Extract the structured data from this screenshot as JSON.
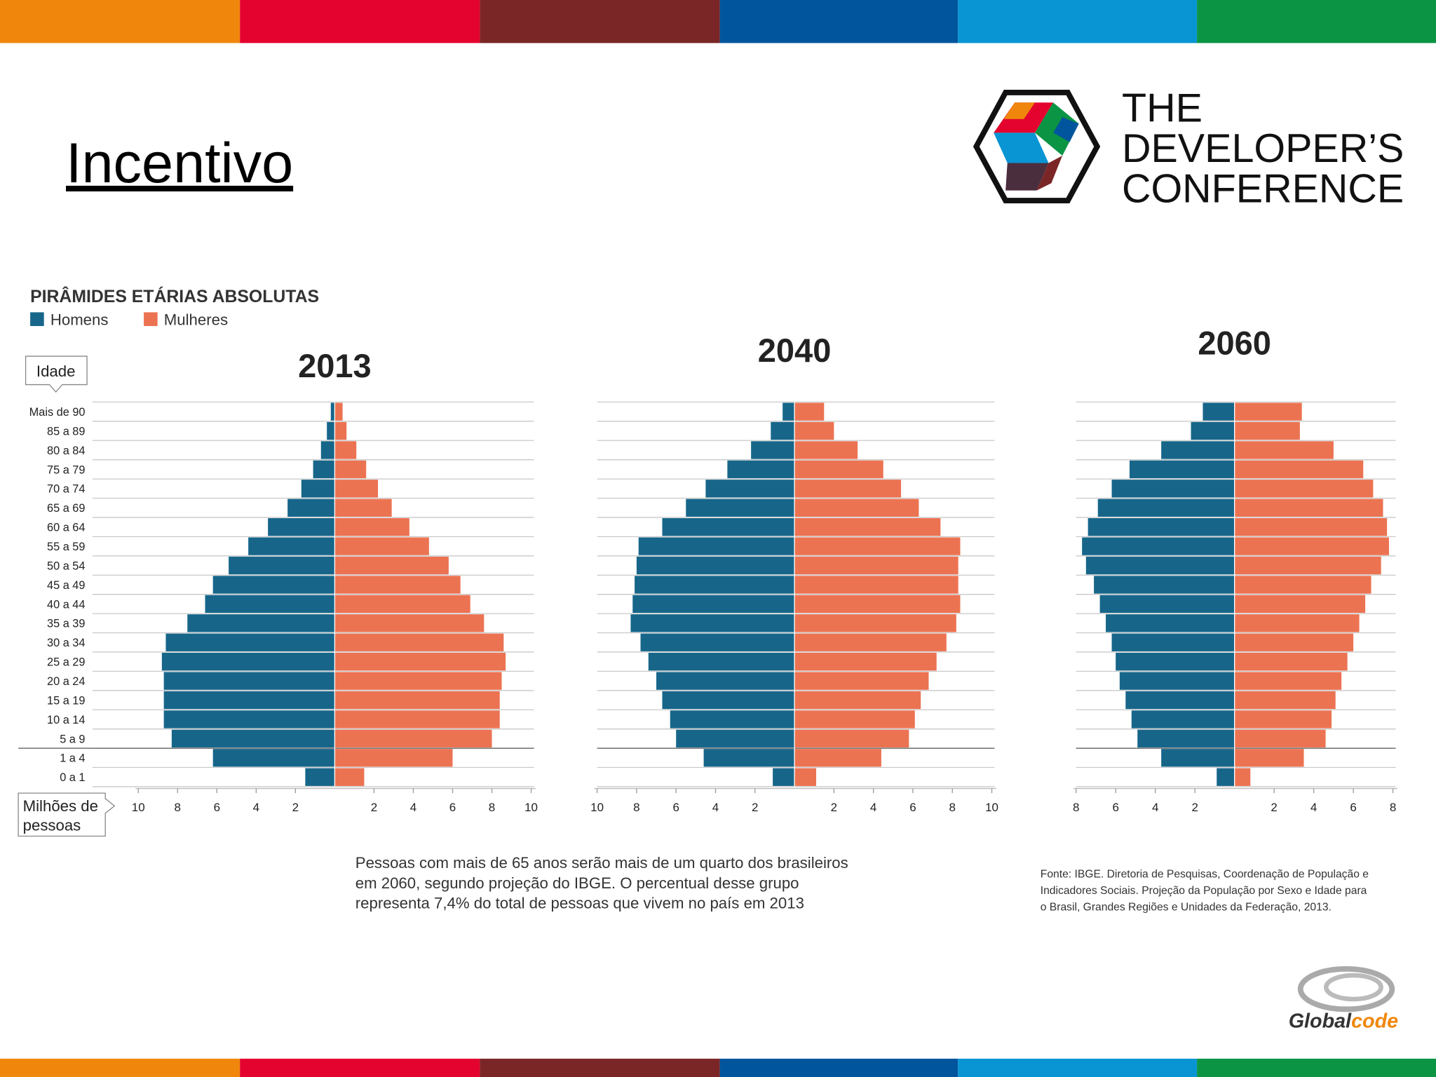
{
  "header": {
    "title": "Incentivo",
    "logo_lines": [
      "THE",
      "DEVELOPER’S",
      "CONFERENCE"
    ],
    "brand_parts": [
      "Global",
      "code"
    ]
  },
  "figure": {
    "caption": [
      "Pessoas com mais de 65 anos serão mais de um quarto dos brasileiros",
      "em 2060, segundo projeção do IBGE. O percentual desse grupo",
      "representa 7,4% do total de pessoas que vivem no país em 2013"
    ],
    "source": [
      "Fonte: IBGE. Diretoria de Pesquisas, Coordenação de População e",
      "Indicadores Sociais. Projeção da População por Sexo e Idade para",
      "o Brasil, Grandes Regiões e Unidades da Federação, 2013."
    ]
  },
  "chart_data": [
    {
      "type": "pyramid",
      "heading": "PIRÂMIDES ETÁRIAS ABSOLUTAS",
      "title": "2013",
      "y_label": "Idade",
      "x_label": [
        "Milhões de",
        "pessoas"
      ],
      "categories": [
        "Mais de 90",
        "85 a 89",
        "80 a 84",
        "75 a 79",
        "70 a 74",
        "65 a 69",
        "60 a 64",
        "55 a 59",
        "50 a 54",
        "45 a 49",
        "40 a 44",
        "35 a 39",
        "30 a 34",
        "25 a 29",
        "20 a 24",
        "15 a 19",
        "10 a 14",
        "5 a 9",
        "1 a 4",
        "0 a 1"
      ],
      "series": [
        {
          "name": "Homens",
          "color": "#17668a",
          "values": [
            0.2,
            0.4,
            0.7,
            1.1,
            1.7,
            2.4,
            3.4,
            4.4,
            5.4,
            6.2,
            6.6,
            7.5,
            8.6,
            8.8,
            8.7,
            8.7,
            8.7,
            8.3,
            6.2,
            1.5
          ]
        },
        {
          "name": "Mulheres",
          "color": "#ec7352",
          "values": [
            0.4,
            0.6,
            1.1,
            1.6,
            2.2,
            2.9,
            3.8,
            4.8,
            5.8,
            6.4,
            6.9,
            7.6,
            8.6,
            8.7,
            8.5,
            8.4,
            8.4,
            8.0,
            6.0,
            1.5
          ]
        }
      ],
      "xlim": [
        -10,
        10
      ],
      "xticks": [
        {
          "value": -10,
          "label": "10"
        },
        {
          "value": -8,
          "label": "8"
        },
        {
          "value": -6,
          "label": "6"
        },
        {
          "value": -4,
          "label": "4"
        },
        {
          "value": -2,
          "label": "2"
        },
        2,
        4,
        6,
        8,
        10
      ]
    },
    {
      "type": "pyramid",
      "title": "2040",
      "series": [
        {
          "color": "#17668a",
          "values": [
            0.6,
            1.2,
            2.2,
            3.4,
            4.5,
            5.5,
            6.7,
            7.9,
            8.0,
            8.1,
            8.2,
            8.3,
            7.8,
            7.4,
            7.0,
            6.7,
            6.3,
            6.0,
            4.6,
            1.1
          ]
        },
        {
          "color": "#ec7352",
          "values": [
            1.5,
            2.0,
            3.2,
            4.5,
            5.4,
            6.3,
            7.4,
            8.4,
            8.3,
            8.3,
            8.4,
            8.2,
            7.7,
            7.2,
            6.8,
            6.4,
            6.1,
            5.8,
            4.4,
            1.1
          ]
        }
      ],
      "xlim": [
        -10,
        10
      ],
      "xticks": [
        {
          "value": -10,
          "label": "10"
        },
        {
          "value": -8,
          "label": "8"
        },
        {
          "value": -6,
          "label": "6"
        },
        {
          "value": -4,
          "label": "4"
        },
        {
          "value": -2,
          "label": "2"
        },
        2,
        4,
        6,
        8,
        10
      ]
    },
    {
      "type": "pyramid",
      "title": "2060",
      "series": [
        {
          "color": "#17668a",
          "values": [
            1.6,
            2.2,
            3.7,
            5.3,
            6.2,
            6.9,
            7.4,
            7.7,
            7.5,
            7.1,
            6.8,
            6.5,
            6.2,
            6.0,
            5.8,
            5.5,
            5.2,
            4.9,
            3.7,
            0.9
          ]
        },
        {
          "color": "#ec7352",
          "values": [
            3.4,
            3.3,
            5.0,
            6.5,
            7.0,
            7.5,
            7.7,
            7.8,
            7.4,
            6.9,
            6.6,
            6.3,
            6.0,
            5.7,
            5.4,
            5.1,
            4.9,
            4.6,
            3.5,
            0.8
          ]
        }
      ],
      "xlim": [
        -8,
        8
      ],
      "xticks": [
        {
          "value": -8,
          "label": "8"
        },
        {
          "value": -6,
          "label": "6"
        },
        {
          "value": -4,
          "label": "4"
        },
        {
          "value": -2,
          "label": "2"
        },
        2,
        4,
        6,
        8
      ]
    }
  ]
}
